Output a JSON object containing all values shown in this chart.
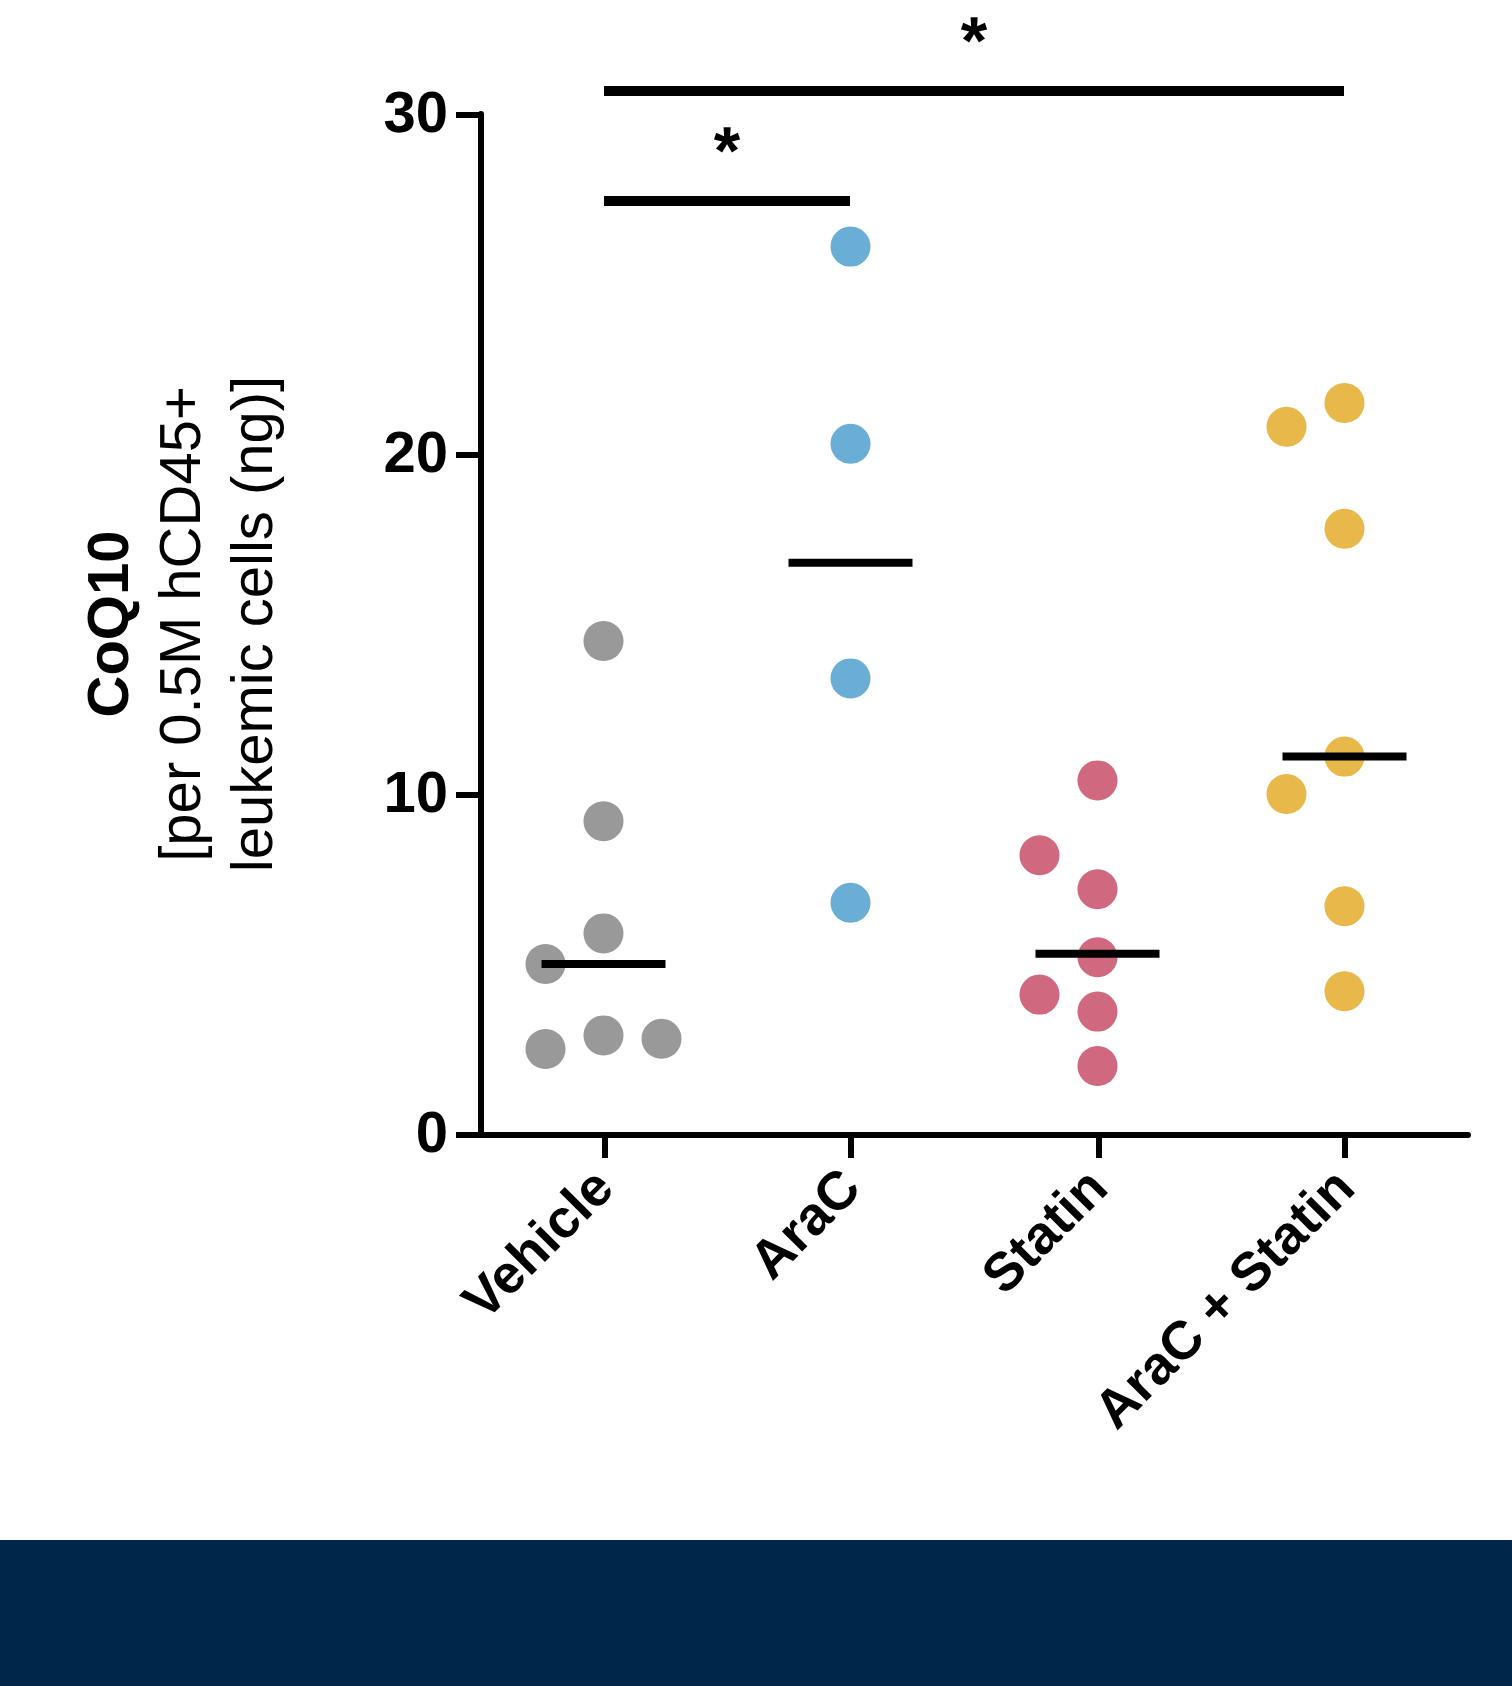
{
  "chart_data": {
    "type": "scatter",
    "ylabel": "CoQ10\n[per 0.5M hCD45+\nleukemic cells (ng)]",
    "categories": [
      "Vehicle",
      "AraC",
      "Statin",
      "AraC + Statin"
    ],
    "ylim": [
      0,
      30
    ],
    "yticks": [
      0,
      10,
      20,
      30
    ],
    "grid": false,
    "marker": "circle",
    "series": [
      {
        "color": "#999999",
        "x": [
          "Vehicle",
          "Vehicle",
          "Vehicle",
          "Vehicle",
          "Vehicle",
          "Vehicle",
          "Vehicle"
        ],
        "values": [
          14.5,
          9.2,
          5.9,
          5.0,
          2.9,
          2.5,
          2.8
        ]
      },
      {
        "color": "#6aaed6",
        "x": [
          "AraC",
          "AraC",
          "AraC",
          "AraC"
        ],
        "values": [
          26.1,
          20.3,
          13.4,
          6.8
        ]
      },
      {
        "color": "#d0697f",
        "x": [
          "Statin",
          "Statin",
          "Statin",
          "Statin",
          "Statin",
          "Statin",
          "Statin"
        ],
        "values": [
          10.4,
          7.2,
          8.2,
          5.2,
          4.1,
          3.6,
          2.0
        ]
      },
      {
        "color": "#e8b84a",
        "x": [
          "AraC + Statin",
          "AraC + Statin",
          "AraC + Statin",
          "AraC + Statin",
          "AraC + Statin",
          "AraC + Statin",
          "AraC + Statin"
        ],
        "values": [
          21.5,
          20.8,
          17.8,
          11.1,
          10.0,
          6.7,
          4.2
        ]
      },
      {
        "color": "#000000",
        "type": "box",
        "boxes": [
          {
            "low": 5.0,
            "q1": 5.0,
            "median": 5.0,
            "q3": 5.0,
            "high": 5.0
          },
          {
            "low": 16.8,
            "q1": 16.8,
            "median": 16.8,
            "q3": 16.8,
            "high": 16.8
          },
          {
            "low": 5.3,
            "q1": 5.3,
            "median": 5.3,
            "q3": 5.3,
            "high": 5.3
          },
          {
            "low": 11.1,
            "q1": 11.1,
            "median": 11.1,
            "q3": 11.1,
            "high": 11.1
          }
        ]
      }
    ],
    "annotations": [
      "*",
      "*"
    ]
  }
}
